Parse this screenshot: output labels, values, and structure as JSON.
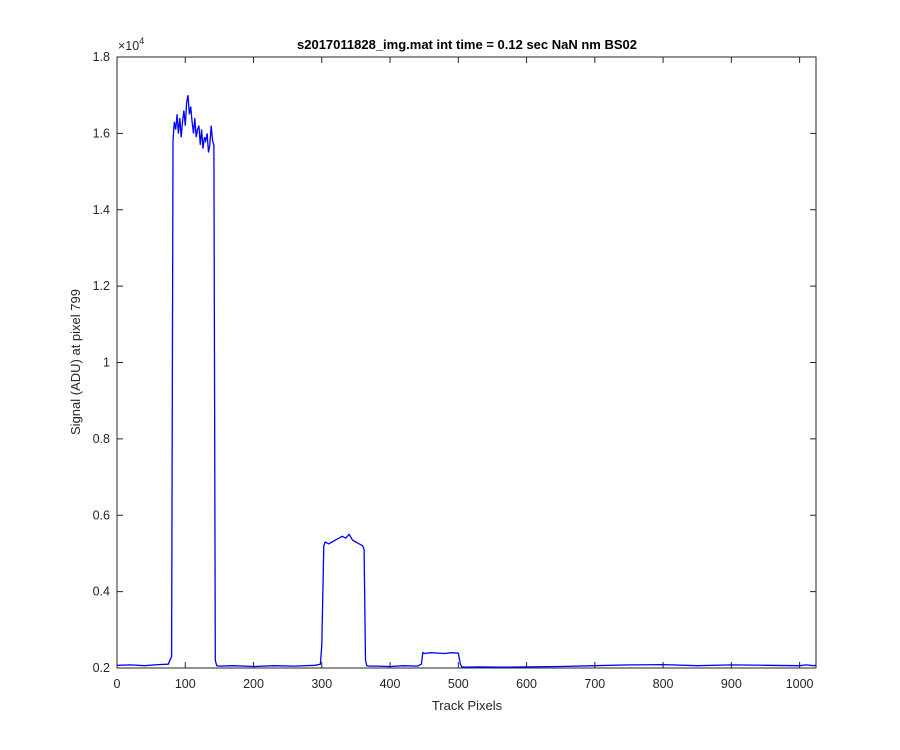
{
  "chart_data": {
    "type": "line",
    "title": "s2017011828_img.mat int time = 0.12 sec  NaN nm BS02",
    "xlabel": "Track Pixels",
    "ylabel": "Signal (ADU) at pixel 799",
    "exponent_prefix": "×10",
    "exponent_power": "4",
    "xlim": [
      0,
      1024
    ],
    "ylim": [
      2000,
      18000
    ],
    "xticks": [
      0,
      100,
      200,
      300,
      400,
      500,
      600,
      700,
      800,
      900,
      1000
    ],
    "xtick_labels": [
      "0",
      "100",
      "200",
      "300",
      "400",
      "500",
      "600",
      "700",
      "800",
      "900",
      "1000"
    ],
    "yticks": [
      2000,
      4000,
      6000,
      8000,
      10000,
      12000,
      14000,
      16000,
      18000
    ],
    "ytick_labels": [
      "0.2",
      "0.4",
      "0.6",
      "0.8",
      "1",
      "1.2",
      "1.4",
      "1.6",
      "1.8"
    ],
    "grid": false,
    "line_color": "#0000ff",
    "series": [
      {
        "x": [
          0,
          20,
          40,
          60,
          75,
          80,
          82,
          84,
          86,
          88,
          90,
          92,
          94,
          96,
          98,
          100,
          102,
          104,
          106,
          108,
          110,
          112,
          114,
          116,
          118,
          120,
          122,
          124,
          126,
          128,
          130,
          132,
          134,
          136,
          138,
          140,
          142,
          144,
          146,
          150,
          170,
          200,
          230,
          260,
          290,
          298,
          300,
          303,
          305,
          310,
          315,
          320,
          325,
          330,
          335,
          340,
          345,
          350,
          355,
          360,
          362,
          364,
          366,
          370,
          380,
          400,
          420,
          440,
          446,
          448,
          450,
          460,
          470,
          480,
          490,
          500,
          503,
          505,
          510,
          530,
          560,
          600,
          650,
          700,
          750,
          800,
          850,
          900,
          950,
          1000,
          1010,
          1020,
          1024
        ],
        "y": [
          2070,
          2080,
          2060,
          2090,
          2100,
          2300,
          15800,
          16300,
          16100,
          16500,
          16000,
          16400,
          15900,
          16300,
          16600,
          16200,
          16800,
          17000,
          16500,
          16700,
          16300,
          16000,
          16400,
          15900,
          16100,
          16200,
          15700,
          16100,
          15600,
          15900,
          15800,
          16000,
          15500,
          15700,
          16200,
          15800,
          15700,
          2200,
          2060,
          2050,
          2060,
          2040,
          2060,
          2050,
          2070,
          2100,
          2600,
          5200,
          5300,
          5250,
          5300,
          5350,
          5400,
          5450,
          5400,
          5500,
          5350,
          5300,
          5250,
          5200,
          5100,
          2200,
          2060,
          2050,
          2050,
          2040,
          2060,
          2050,
          2100,
          2400,
          2380,
          2400,
          2390,
          2380,
          2400,
          2390,
          2100,
          2030,
          2020,
          2030,
          2020,
          2030,
          2040,
          2060,
          2080,
          2090,
          2060,
          2080,
          2070,
          2060,
          2080,
          2060,
          2070
        ]
      }
    ]
  }
}
